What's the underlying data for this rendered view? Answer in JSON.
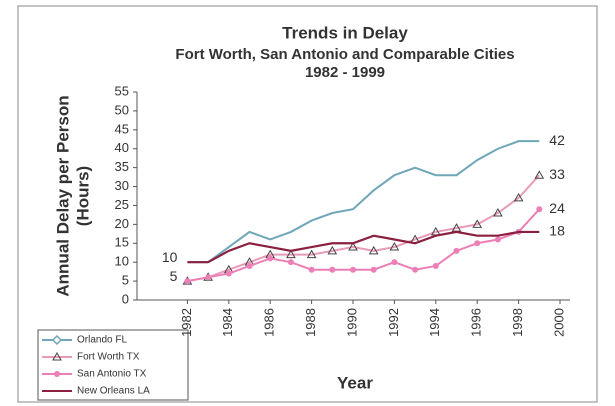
{
  "chart_data": {
    "type": "line",
    "title": "Trends in Delay",
    "subtitle": [
      "Fort Worth, San Antonio and Comparable Cities",
      "1982  -  1999"
    ],
    "x_label": "Year",
    "y_label": [
      "Annual Delay per Person",
      "(Hours)"
    ],
    "x": [
      1982,
      1983,
      1984,
      1985,
      1986,
      1987,
      1988,
      1989,
      1990,
      1991,
      1992,
      1993,
      1994,
      1995,
      1996,
      1997,
      1998,
      1999
    ],
    "xlim": [
      1980,
      2000
    ],
    "xticks": [
      1982,
      1984,
      1986,
      1988,
      1990,
      1992,
      1994,
      1996,
      1998,
      2000
    ],
    "ylim": [
      0,
      55
    ],
    "yticks": [
      0,
      5,
      10,
      15,
      20,
      25,
      30,
      35,
      40,
      45,
      50,
      55
    ],
    "grid": false,
    "legend": "bottom-left",
    "series": [
      {
        "name": "Orlando FL",
        "color": "#6fa7b9",
        "marker": "diamond",
        "values": [
          10,
          10,
          14,
          18,
          16,
          18,
          21,
          23,
          24,
          29,
          33,
          35,
          33,
          33,
          37,
          40,
          42,
          42
        ],
        "value_labels": [
          null,
          null,
          null,
          null,
          null,
          null,
          null,
          null,
          null,
          null,
          null,
          null,
          null,
          null,
          null,
          null,
          null,
          "42"
        ]
      },
      {
        "name": "Fort Worth TX",
        "color": "#e89ab8",
        "marker": "triangle",
        "values": [
          5,
          6,
          8,
          10,
          12,
          12,
          12,
          13,
          14,
          13,
          14,
          16,
          18,
          19,
          20,
          23,
          27,
          33
        ],
        "value_labels": [
          null,
          null,
          null,
          null,
          null,
          null,
          null,
          null,
          null,
          null,
          null,
          null,
          null,
          null,
          null,
          null,
          null,
          "33"
        ]
      },
      {
        "name": "San Antonio TX",
        "color": "#ec7fb5",
        "marker": "circle",
        "values": [
          5,
          6,
          7,
          9,
          11,
          10,
          8,
          8,
          8,
          8,
          10,
          8,
          9,
          13,
          15,
          16,
          18,
          24
        ],
        "value_labels": [
          "5",
          null,
          null,
          null,
          null,
          null,
          null,
          null,
          null,
          null,
          null,
          null,
          null,
          null,
          null,
          null,
          null,
          "24"
        ]
      },
      {
        "name": "New Orleans LA",
        "color": "#8a1f40",
        "marker": "none",
        "values": [
          10,
          10,
          13,
          15,
          14,
          13,
          14,
          15,
          15,
          17,
          16,
          15,
          17,
          18,
          17,
          17,
          18,
          18
        ],
        "value_labels": [
          "10",
          null,
          null,
          null,
          null,
          null,
          null,
          null,
          null,
          null,
          null,
          null,
          null,
          null,
          null,
          null,
          null,
          "18"
        ]
      }
    ]
  }
}
